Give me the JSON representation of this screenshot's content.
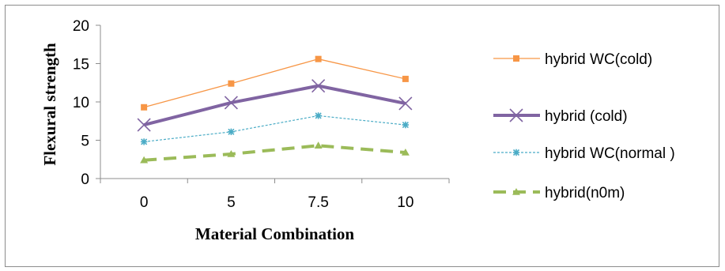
{
  "chart_data": {
    "type": "line",
    "title": "",
    "xlabel": "Material Combination",
    "ylabel": "Flexural strength",
    "categories": [
      "0",
      "5",
      "7.5",
      "10"
    ],
    "ylim": [
      0,
      20
    ],
    "yticks": [
      "0",
      "5",
      "10",
      "15",
      "20"
    ],
    "grid": false,
    "legend_position": "right",
    "series": [
      {
        "name": "hybrid WC(cold)",
        "values": [
          9.3,
          12.4,
          15.6,
          13.0
        ],
        "color": "#F79646",
        "marker": "square",
        "line_style": "solid-thin"
      },
      {
        "name": "hybrid (cold)",
        "values": [
          7.0,
          9.9,
          12.1,
          9.8
        ],
        "color": "#8064A2",
        "marker": "x",
        "line_style": "solid-thick"
      },
      {
        "name": "hybrid WC(normal )",
        "values": [
          4.8,
          6.1,
          8.2,
          7.0
        ],
        "color": "#4BACC6",
        "marker": "star",
        "line_style": "dotted"
      },
      {
        "name": "hybrid(n0m)",
        "values": [
          2.4,
          3.2,
          4.3,
          3.4
        ],
        "color": "#9BBB59",
        "marker": "triangle",
        "line_style": "dashed-thick"
      }
    ]
  }
}
